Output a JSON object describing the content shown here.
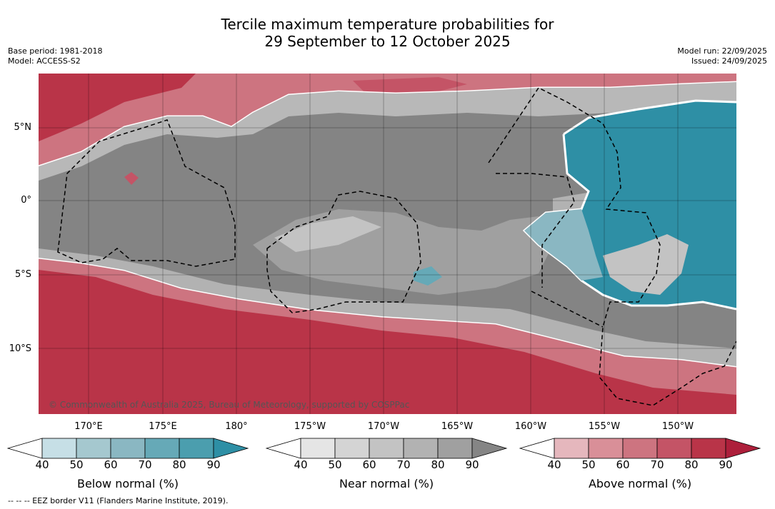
{
  "title_line1": "Tercile maximum temperature probabilities for",
  "title_line2": "29 September to 12 October 2025",
  "meta_left": {
    "base_period": "Base period: 1981-2018",
    "model": "Model: ACCESS-S2"
  },
  "meta_right": {
    "model_run": "Model run: 22/09/2025",
    "issued": "Issued: 24/09/2025"
  },
  "lat_labels": [
    "5°N",
    "0°",
    "5°S",
    "10°S"
  ],
  "lon_labels": [
    "170°E",
    "175°E",
    "180°",
    "175°W",
    "170°W",
    "165°W",
    "160°W",
    "155°W",
    "150°W"
  ],
  "copyright": "© Commonwealth of Australia 2025, Bureau of Meteorology, supported by COSPPac",
  "colorbars": [
    {
      "label": "Below normal (%)",
      "ticks": [
        "40",
        "50",
        "60",
        "70",
        "80",
        "90"
      ],
      "colors": [
        "#ffffff",
        "#c6dfe6",
        "#a5c8cf",
        "#8ab7c2",
        "#66a9b7",
        "#4b9eae",
        "#2e8fa5"
      ]
    },
    {
      "label": "Near normal (%)",
      "ticks": [
        "40",
        "50",
        "60",
        "70",
        "80",
        "90"
      ],
      "colors": [
        "#ffffff",
        "#e5e5e5",
        "#d4d4d4",
        "#c3c3c3",
        "#b2b2b2",
        "#a0a0a0",
        "#858585"
      ]
    },
    {
      "label": "Above normal (%)",
      "ticks": [
        "40",
        "50",
        "60",
        "70",
        "80",
        "90"
      ],
      "colors": [
        "#ffffff",
        "#e5b7bd",
        "#d98f98",
        "#cd7480",
        "#c45466",
        "#b93448",
        "#ad1f3b"
      ]
    }
  ],
  "footer": "--  --  -- EEZ border V11 (Flanders Marine Institute, 2019)."
}
